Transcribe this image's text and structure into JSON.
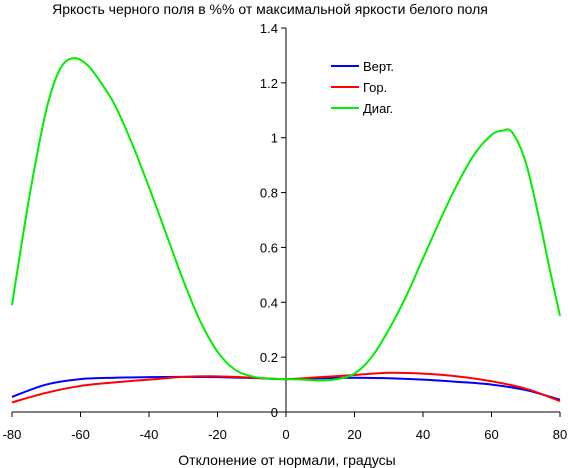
{
  "chart_data": {
    "type": "line",
    "title": "Яркость черного поля в %% от максимальной яркости белого поля",
    "xlabel": "Отклонение от нормали, градусы",
    "ylabel": "",
    "xlim": [
      -80,
      80
    ],
    "ylim": [
      0,
      1.4
    ],
    "xticks": [
      -80,
      -60,
      -40,
      -20,
      0,
      20,
      40,
      60,
      80
    ],
    "yticks": [
      0,
      0.2,
      0.4,
      0.6,
      0.8,
      1,
      1.2,
      1.4
    ],
    "xtick_labels": [
      "-80",
      "-60",
      "-40",
      "-20",
      "0",
      "20",
      "40",
      "60",
      "80"
    ],
    "ytick_labels": [
      "0",
      "0.2",
      "0.4",
      "0.6",
      "0.8",
      "1",
      "1.2",
      "1.4"
    ],
    "grid": false,
    "legend_position": "top-center",
    "series": [
      {
        "name": "Верт.",
        "color": "#0000ff",
        "x": [
          -80,
          -70,
          -60,
          -50,
          -40,
          -30,
          -20,
          -10,
          0,
          10,
          20,
          30,
          40,
          50,
          60,
          70,
          80
        ],
        "y": [
          0.055,
          0.1,
          0.12,
          0.125,
          0.127,
          0.128,
          0.127,
          0.124,
          0.12,
          0.123,
          0.125,
          0.123,
          0.118,
          0.11,
          0.1,
          0.08,
          0.045
        ]
      },
      {
        "name": "Гор.",
        "color": "#ff0000",
        "x": [
          -80,
          -70,
          -60,
          -50,
          -40,
          -30,
          -20,
          -10,
          0,
          10,
          20,
          30,
          40,
          50,
          60,
          70,
          80
        ],
        "y": [
          0.035,
          0.07,
          0.095,
          0.108,
          0.118,
          0.128,
          0.13,
          0.125,
          0.12,
          0.127,
          0.135,
          0.143,
          0.14,
          0.13,
          0.112,
          0.085,
          0.04
        ]
      },
      {
        "name": "Диаг.",
        "color": "#00ee00",
        "x": [
          -80,
          -75,
          -70,
          -66,
          -62,
          -58,
          -54,
          -50,
          -45,
          -40,
          -35,
          -30,
          -25,
          -20,
          -15,
          -10,
          -5,
          0,
          5,
          10,
          15,
          20,
          25,
          30,
          35,
          40,
          45,
          50,
          55,
          60,
          63,
          66,
          70,
          74,
          77,
          80
        ],
        "y": [
          0.39,
          0.78,
          1.1,
          1.25,
          1.29,
          1.265,
          1.2,
          1.12,
          0.98,
          0.82,
          0.65,
          0.48,
          0.33,
          0.22,
          0.155,
          0.13,
          0.122,
          0.12,
          0.118,
          0.115,
          0.12,
          0.14,
          0.2,
          0.3,
          0.42,
          0.56,
          0.7,
          0.83,
          0.94,
          1.01,
          1.025,
          1.02,
          0.91,
          0.7,
          0.52,
          0.35
        ]
      }
    ]
  }
}
